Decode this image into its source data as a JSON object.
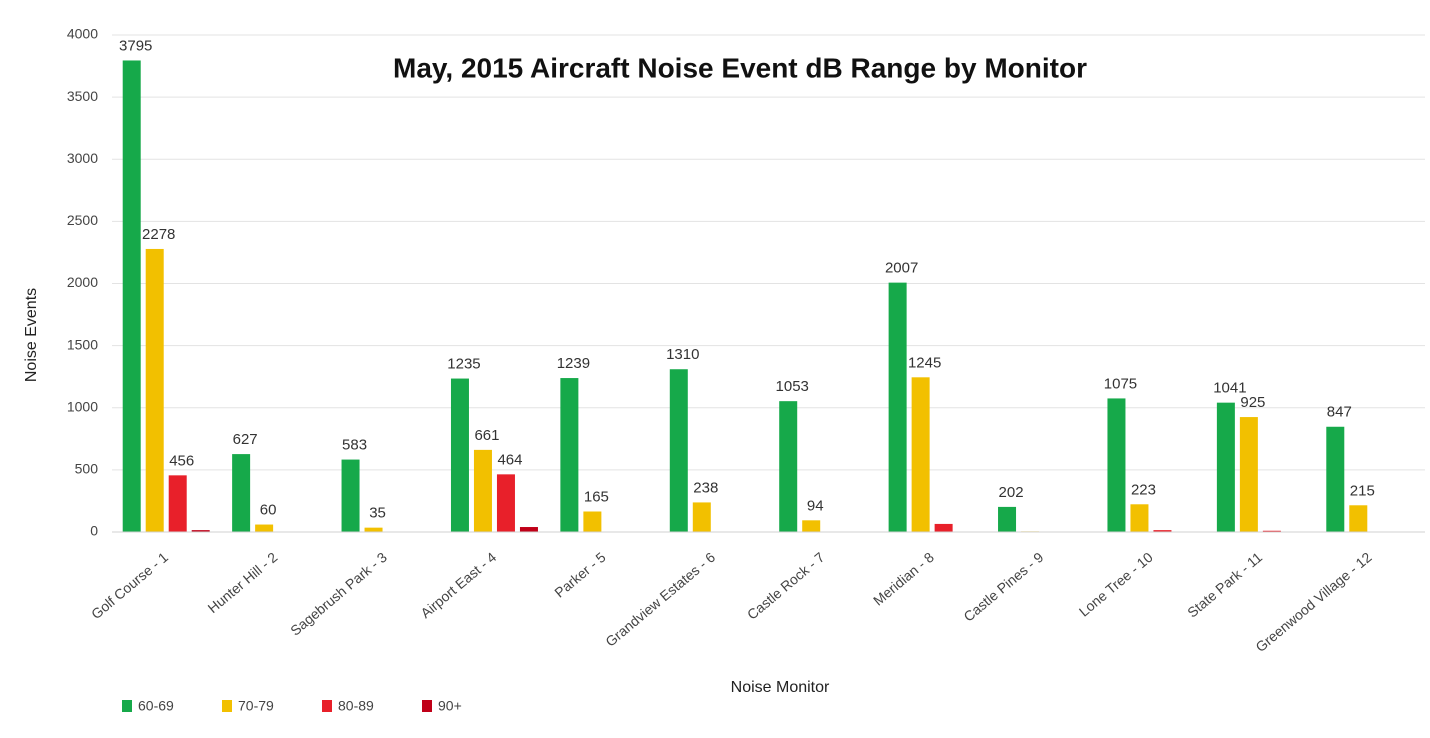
{
  "chart_data": {
    "type": "bar",
    "title": "May, 2015 Aircraft Noise Event dB Range by Monitor",
    "x_label": "Noise Monitor",
    "y_label": "Noise Events",
    "categories": [
      "Golf Course - 1",
      "Hunter Hill - 2",
      "Sagebrush Park - 3",
      "Airport East - 4",
      "Parker - 5",
      "Grandview Estates - 6",
      "Castle Rock - 7",
      "Meridian - 8",
      "Castle Pines - 9",
      "Lone Tree - 10",
      "State Park - 11",
      "Greenwood Village - 12"
    ],
    "series": [
      {
        "name": "60-69",
        "color": "#16a94a",
        "values": [
          3795,
          627,
          583,
          1235,
          1239,
          1310,
          1053,
          2007,
          202,
          1075,
          1041,
          847
        ],
        "value_labels": [
          "3795",
          "627",
          "583",
          "1235",
          "1239",
          "1310",
          "1053",
          "2007",
          "202",
          "1075",
          "1041",
          "847"
        ]
      },
      {
        "name": "70-79",
        "color": "#f2c000",
        "values": [
          2278,
          60,
          35,
          661,
          165,
          238,
          94,
          1245,
          5,
          223,
          925,
          215
        ],
        "value_labels": [
          "2278",
          "60",
          "35",
          "661",
          "165",
          "238",
          "94",
          "1245",
          null,
          "223",
          "925",
          "215"
        ]
      },
      {
        "name": "80-89",
        "color": "#e8202a",
        "values": [
          456,
          0,
          0,
          464,
          0,
          0,
          0,
          65,
          0,
          15,
          10,
          0
        ],
        "value_labels": [
          "456",
          null,
          null,
          "464",
          null,
          null,
          null,
          null,
          null,
          null,
          null,
          null
        ]
      },
      {
        "name": "90+",
        "color": "#c00018",
        "values": [
          15,
          0,
          0,
          40,
          0,
          0,
          0,
          0,
          0,
          0,
          0,
          0
        ],
        "value_labels": [
          null,
          null,
          null,
          null,
          null,
          null,
          null,
          null,
          null,
          null,
          null,
          null
        ]
      }
    ],
    "ylim": [
      0,
      4000
    ],
    "yticks": [
      0,
      500,
      1000,
      1500,
      2000,
      2500,
      3000,
      3500,
      4000
    ],
    "grid": true,
    "legend": "bottom-left"
  }
}
